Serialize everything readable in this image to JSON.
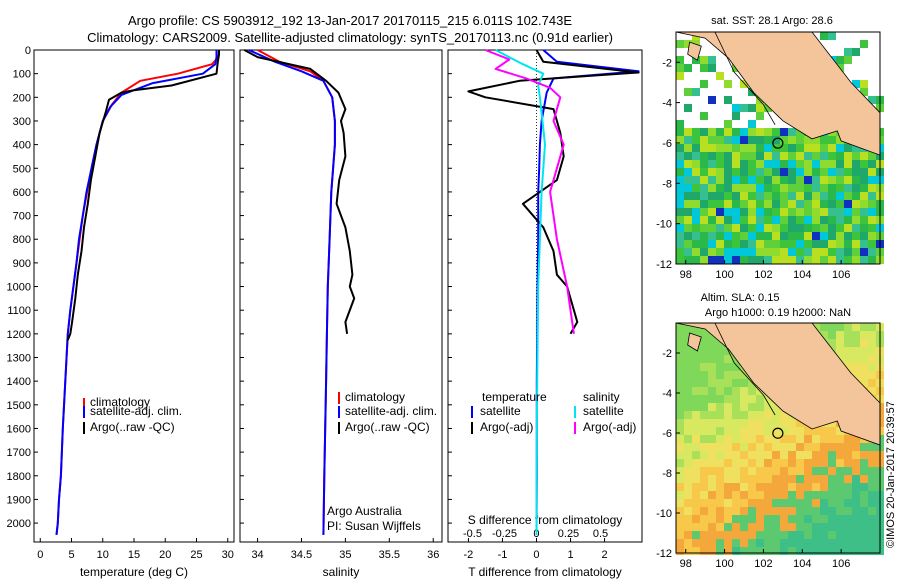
{
  "header": {
    "title_line1": "Argo profile: CS 5903912_192 13-Jan-2017 20170115_215 6.011S 102.743E",
    "title_line2": "Climatology: CARS2009. Satellite-adjusted climatology: synTS_20170113.nc (0.91d earlier)"
  },
  "colors": {
    "climatology": "#ff0000",
    "satellite": "#0000ff",
    "argo": "#000000",
    "satellite_salinity": "#00e5ee",
    "argo_salinity": "#ff00ff",
    "land": "#f4c49a"
  },
  "legend_left": {
    "items": [
      {
        "label": "climatology",
        "color": "#ff0000"
      },
      {
        "label": "satellite-adj. clim.",
        "color": "#0000ff"
      },
      {
        "label": "Argo(..raw -QC)",
        "color": "#000000"
      }
    ]
  },
  "legend_diff": {
    "temperature_header": "temperature",
    "salinity_header": "salinity",
    "t_items": [
      {
        "label": "satellite",
        "color": "#0000ff"
      },
      {
        "label": "Argo(-adj)",
        "color": "#000000"
      }
    ],
    "s_items": [
      {
        "label": "satellite",
        "color": "#00e5ee"
      },
      {
        "label": "Argo(-adj)",
        "color": "#ff00ff"
      }
    ]
  },
  "credits": {
    "line1": "Argo Australia",
    "line2": "PI: Susan Wijffels"
  },
  "map_top": {
    "title": "sat. SST: 28.1  Argo: 28.6"
  },
  "map_bottom": {
    "title1": "Altim. SLA: 0.15",
    "title2": "Argo h1000: 0.19 h2000: NaN"
  },
  "side_stamp": "©IMOS 20-Jan-2017 20:39:57",
  "chart_data": [
    {
      "type": "line",
      "xlabel": "temperature (deg C)",
      "ylabel": "",
      "xlim": [
        -1,
        31
      ],
      "ylim": [
        2080,
        0
      ],
      "xticks": [
        0,
        5,
        10,
        15,
        20,
        25,
        30
      ],
      "yticks": [
        0,
        100,
        200,
        300,
        400,
        500,
        600,
        700,
        800,
        900,
        1000,
        1100,
        1200,
        1300,
        1400,
        1500,
        1600,
        1700,
        1800,
        1900,
        2000
      ],
      "series": [
        {
          "name": "climatology",
          "x": [
            28.6,
            28.5,
            27.5,
            22,
            16,
            13,
            11.5,
            10,
            9,
            8.2,
            7.5,
            6.8,
            6.3,
            5.8,
            5.3,
            4.8,
            4.4,
            4.0,
            3.6,
            3.3,
            3.0,
            2.8,
            2.6
          ],
          "y": [
            0,
            30,
            60,
            100,
            130,
            180,
            230,
            300,
            400,
            500,
            600,
            700,
            800,
            900,
            1000,
            1100,
            1200,
            1400,
            1600,
            1800,
            1900,
            2000,
            2050
          ]
        },
        {
          "name": "satellite-adj. clim.",
          "x": [
            28.2,
            28.2,
            28.0,
            26,
            18,
            13,
            11.2,
            10,
            9,
            8.2,
            7.4,
            6.8,
            6.2,
            5.8,
            5.3,
            4.8,
            4.4,
            4.0,
            3.6,
            3.3,
            3.0,
            2.8,
            2.6
          ],
          "y": [
            0,
            30,
            60,
            100,
            140,
            190,
            240,
            300,
            400,
            500,
            600,
            700,
            800,
            900,
            1000,
            1100,
            1200,
            1400,
            1600,
            1800,
            1900,
            2000,
            2050
          ]
        },
        {
          "name": "Argo(..raw -QC)",
          "x": [
            28.6,
            28.6,
            28.4,
            28.2,
            21,
            15,
            13,
            11,
            10.5,
            9.5,
            8.8,
            8.1,
            7.6,
            7.0,
            6.6,
            6.0,
            5.6,
            5.1,
            4.8,
            4.5,
            4.3
          ],
          "y": [
            0,
            20,
            50,
            100,
            150,
            170,
            180,
            210,
            260,
            350,
            450,
            550,
            650,
            750,
            850,
            950,
            1050,
            1150,
            1200,
            1220,
            1230
          ]
        }
      ]
    },
    {
      "type": "line",
      "xlabel": "salinity",
      "ylabel": "",
      "xlim": [
        33.8,
        36.1
      ],
      "ylim": [
        2080,
        0
      ],
      "xticks": [
        34,
        34.5,
        35,
        35.5,
        36
      ],
      "xticklabels": [
        "34",
        "34.5",
        "35",
        "35.5",
        "36"
      ],
      "series": [
        {
          "name": "climatology",
          "x": [
            34.0,
            34.25,
            34.6,
            34.75,
            34.85,
            34.88,
            34.88,
            34.86,
            34.84,
            34.82,
            34.8,
            34.79,
            34.78,
            34.77,
            34.76,
            34.75
          ],
          "y": [
            0,
            50,
            90,
            130,
            200,
            300,
            400,
            500,
            600,
            800,
            1000,
            1200,
            1400,
            1600,
            1800,
            2050
          ]
        },
        {
          "name": "satellite-adj. clim.",
          "x": [
            33.9,
            34.2,
            34.5,
            34.75,
            34.85,
            34.88,
            34.88,
            34.86,
            34.84,
            34.82,
            34.8,
            34.79,
            34.78,
            34.77,
            34.76,
            34.75
          ],
          "y": [
            0,
            50,
            90,
            130,
            200,
            300,
            400,
            500,
            600,
            800,
            1000,
            1200,
            1400,
            1600,
            1800,
            2050
          ]
        },
        {
          "name": "Argo(..raw -QC)",
          "x": [
            33.85,
            34.0,
            34.6,
            34.78,
            34.92,
            35.0,
            34.95,
            34.98,
            35.0,
            34.93,
            34.9,
            35.0,
            35.05,
            35.08,
            35.05,
            35.1,
            35.0,
            35.02
          ],
          "y": [
            0,
            30,
            80,
            130,
            180,
            250,
            300,
            350,
            450,
            550,
            650,
            750,
            850,
            950,
            1000,
            1050,
            1150,
            1200
          ]
        }
      ]
    },
    {
      "type": "line",
      "xlabel": "T difference from climatology",
      "title": "S difference from climatology",
      "xlim": [
        -2.6,
        3.1
      ],
      "ylim": [
        2080,
        0
      ],
      "xticks": [
        -2,
        -1,
        0,
        1,
        2
      ],
      "top_ticks": [
        -0.5,
        -0.25,
        0,
        0.25,
        0.5
      ],
      "top_ticklabels": [
        "-0.5",
        "-0.25",
        "0",
        "0.25",
        "0.5"
      ],
      "series": [
        {
          "name": "temperature satellite",
          "x": [
            0.2,
            0.6,
            3.0,
            0.5,
            0.3,
            0.15,
            0.1,
            0.08,
            0.05,
            0.05,
            0.03,
            0.02,
            0.01,
            0.01,
            0
          ],
          "y": [
            0,
            50,
            90,
            120,
            180,
            300,
            400,
            500,
            600,
            800,
            1000,
            1200,
            1400,
            1800,
            2050
          ]
        },
        {
          "name": "temperature Argo(-adj)",
          "x": [
            0.0,
            0.2,
            3.0,
            -0.5,
            -2.0,
            -1.5,
            0.5,
            0.7,
            0.8,
            0.6,
            -0.4,
            0.2,
            0.5,
            0.6,
            0.9,
            1.0,
            1.1,
            1.2,
            1.0
          ],
          "y": [
            0,
            50,
            95,
            130,
            175,
            200,
            250,
            350,
            450,
            550,
            650,
            750,
            850,
            950,
            1000,
            1050,
            1100,
            1150,
            1200
          ]
        },
        {
          "name": "salinity satellite",
          "x": [
            -1.2,
            -0.4,
            0.2,
            0.05,
            0.1,
            0.25,
            0.15,
            0.1,
            0.05,
            0.02,
            0.0,
            0.0
          ],
          "y": [
            0,
            60,
            100,
            150,
            200,
            400,
            600,
            800,
            1000,
            1400,
            1800,
            2050
          ]
        },
        {
          "name": "salinity Argo(-adj)",
          "x": [
            -1.5,
            -0.8,
            -1.2,
            -0.3,
            0.4,
            0.7,
            0.5,
            0.8,
            0.6,
            0.4,
            0.6,
            0.9,
            1.0,
            1.1
          ],
          "y": [
            0,
            40,
            80,
            120,
            160,
            200,
            300,
            400,
            500,
            600,
            800,
            1000,
            1100,
            1200
          ]
        }
      ]
    },
    {
      "type": "heatmap",
      "title": "sat. SST: 28.1  Argo: 28.6",
      "xlim": [
        97.5,
        108
      ],
      "ylim": [
        -12,
        -0.5
      ],
      "xticks": [
        98,
        100,
        102,
        104,
        106
      ],
      "yticks": [
        -2,
        -4,
        -6,
        -8,
        -10,
        -12
      ],
      "argo_position": [
        102.743,
        -6.011
      ]
    },
    {
      "type": "heatmap",
      "title": "Altim. SLA: 0.15",
      "xlim": [
        97.5,
        108
      ],
      "ylim": [
        -12,
        -0.5
      ],
      "xticks": [
        98,
        100,
        102,
        104,
        106
      ],
      "yticks": [
        -2,
        -4,
        -6,
        -8,
        -10,
        -12
      ],
      "argo_position": [
        102.743,
        -6.011
      ]
    }
  ]
}
